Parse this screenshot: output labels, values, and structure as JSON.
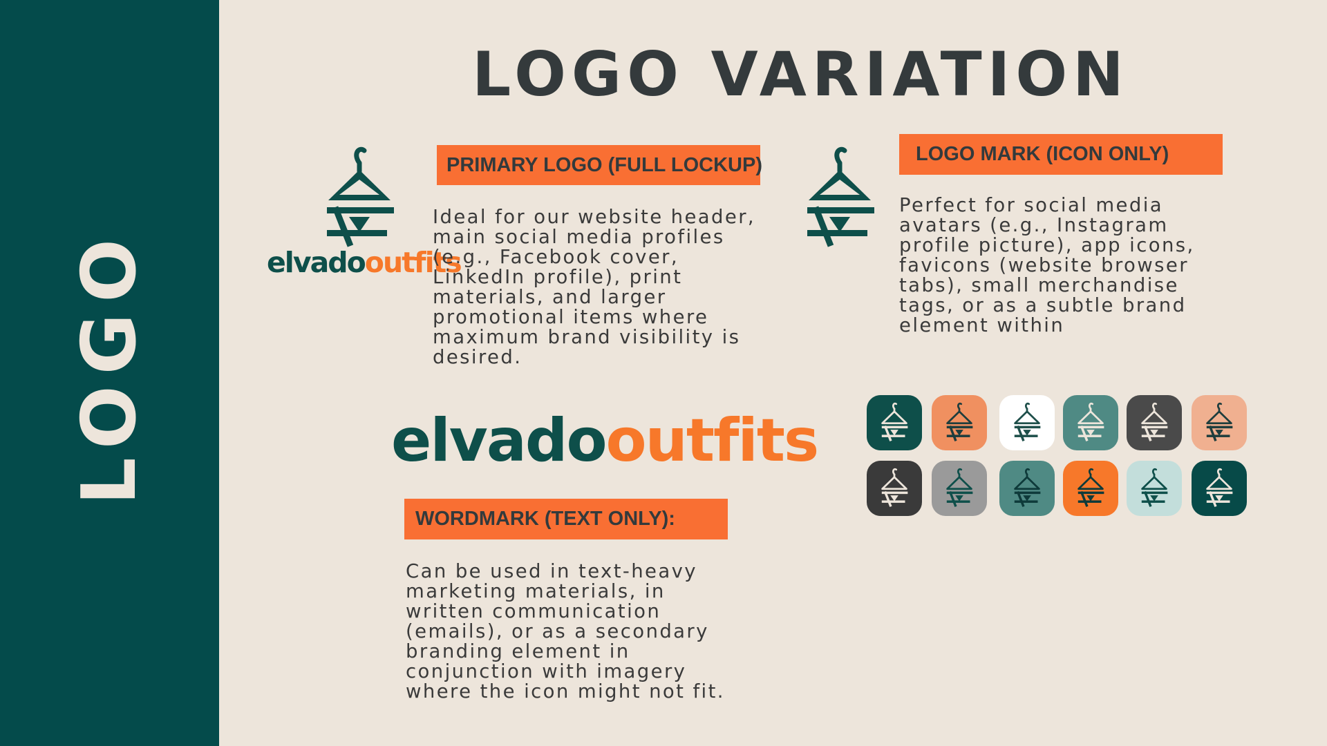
{
  "sidebar": {
    "label": "LOGO",
    "color": "#044b4b"
  },
  "title": "LOGO VARIATION",
  "primary": {
    "tag": "PRIMARY LOGO (FULL LOCKUP)",
    "description": " Ideal for our website header, main social media profiles (e.g., Facebook cover, LinkedIn profile), print materials, and larger promotional items where maximum brand visibility is desired.",
    "wordmark_part1": "elvado",
    "wordmark_part2": "outfits"
  },
  "logomark": {
    "tag": "LOGO MARK (ICON ONLY)",
    "description": "Perfect for social media avatars (e.g., Instagram profile picture), app icons, favicons (website browser tabs), small merchandise tags, or as a subtle brand element within"
  },
  "wordmark": {
    "tag": "WORDMARK (TEXT ONLY):",
    "description": "Can be used in text-heavy marketing materials, in written communication (emails), or as a secondary branding element in conjunction with imagery where the icon might not fit.",
    "part1": "elvado",
    "part2": "outfits"
  },
  "colors": {
    "accent": "#f96f33",
    "background": "#ede5db",
    "teal": "#0e4f4a",
    "orange": "#f7782a"
  },
  "icon_variations": [
    {
      "bg": "#0e4f4a",
      "fg": "#ede5db"
    },
    {
      "bg": "#f09060",
      "fg": "#1e3d3d"
    },
    {
      "bg": "#ffffff",
      "fg": "#1e4f4a"
    },
    {
      "bg": "#4f8a84",
      "fg": "#ede5db"
    },
    {
      "bg": "#4a4a4a",
      "fg": "#ede5db"
    },
    {
      "bg": "#f0b090",
      "fg": "#1e3d3d"
    },
    {
      "bg": "#3a3a3a",
      "fg": "#ede5db"
    },
    {
      "bg": "#9a9a9a",
      "fg": "#0e4f4a"
    },
    {
      "bg": "#4f8a84",
      "fg": "#0e3a3a"
    },
    {
      "bg": "#f7782a",
      "fg": "#0e3a3a"
    },
    {
      "bg": "#c3dedb",
      "fg": "#0e4f4a"
    },
    {
      "bg": "#074a48",
      "fg": "#ede5db"
    }
  ]
}
